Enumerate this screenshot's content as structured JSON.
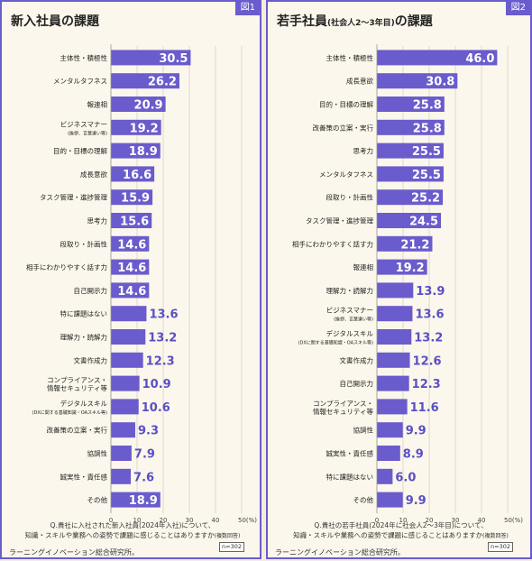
{
  "panels": [
    {
      "fig": "図1",
      "title": "新入社員の課題",
      "title_small": "",
      "title_suffix": "",
      "note_line1": "Q.貴社に入社された新入社員(2024年入社)について、",
      "note_line2": "知識・スキルや業務への姿勢で課題に感じることはありますか",
      "note_tag": "(複数回答)",
      "n_label": "n=302",
      "org": "ラーニングイノベーション総合研究所。"
    },
    {
      "fig": "図2",
      "title": "若手社員",
      "title_small": "(社会人2〜3年目)",
      "title_suffix": "の課題",
      "note_line1": "Q.貴社の若手社員(2024年に社会人2〜3年目)について、",
      "note_line2": "知識・スキルや業務への姿勢で課題に感じることはありますか",
      "note_tag": "(複数回答)",
      "n_label": "n=302",
      "org": "ラーニングイノベーション総合研究所。"
    }
  ],
  "chart_data": [
    {
      "type": "bar",
      "orientation": "horizontal",
      "title": "新入社員の課題",
      "xlim": [
        0,
        50
      ],
      "ticks": [
        "0",
        "10",
        "20",
        "30",
        "40",
        "50(%)"
      ],
      "categories": [
        {
          "label": "主体性・積極性",
          "sub": ""
        },
        {
          "label": "メンタルタフネス",
          "sub": ""
        },
        {
          "label": "報連相",
          "sub": ""
        },
        {
          "label": "ビジネスマナー",
          "sub": "(挨拶、言葉遣い等)"
        },
        {
          "label": "目的・目標の理解",
          "sub": ""
        },
        {
          "label": "成長意欲",
          "sub": ""
        },
        {
          "label": "タスク管理・進捗管理",
          "sub": ""
        },
        {
          "label": "思考力",
          "sub": ""
        },
        {
          "label": "段取り・計画性",
          "sub": ""
        },
        {
          "label": "相手にわかりやすく話す力",
          "sub": ""
        },
        {
          "label": "自己開示力",
          "sub": ""
        },
        {
          "label": "特に課題はない",
          "sub": ""
        },
        {
          "label": "理解力・読解力",
          "sub": ""
        },
        {
          "label": "文書作成力",
          "sub": ""
        },
        {
          "label": "コンプライアンス・",
          "sub": "情報セキュリティ等",
          "sub_style": "line2"
        },
        {
          "label": "デジタルスキル",
          "sub": "(DXに関する基礎知識・OAスキル等)"
        },
        {
          "label": "改善策の立案・実行",
          "sub": ""
        },
        {
          "label": "協調性",
          "sub": ""
        },
        {
          "label": "誠実性・責任感",
          "sub": ""
        },
        {
          "label": "その他",
          "sub": ""
        }
      ],
      "values": [
        30.5,
        26.2,
        20.9,
        19.2,
        18.9,
        16.6,
        15.9,
        15.6,
        14.6,
        14.6,
        14.6,
        13.6,
        13.2,
        12.3,
        10.9,
        10.6,
        9.3,
        7.9,
        7.6,
        18.9
      ],
      "label_inside": [
        true,
        true,
        true,
        true,
        true,
        true,
        true,
        true,
        true,
        true,
        true,
        false,
        false,
        false,
        false,
        false,
        false,
        false,
        false,
        true
      ]
    },
    {
      "type": "bar",
      "orientation": "horizontal",
      "title": "若手社員(社会人2〜3年目)の課題",
      "xlim": [
        0,
        50
      ],
      "ticks": [
        "0",
        "10",
        "20",
        "30",
        "40",
        "50(%)"
      ],
      "categories": [
        {
          "label": "主体性・積極性",
          "sub": ""
        },
        {
          "label": "成長意欲",
          "sub": ""
        },
        {
          "label": "目的・目標の理解",
          "sub": ""
        },
        {
          "label": "改善策の立案・実行",
          "sub": ""
        },
        {
          "label": "思考力",
          "sub": ""
        },
        {
          "label": "メンタルタフネス",
          "sub": ""
        },
        {
          "label": "段取り・計画性",
          "sub": ""
        },
        {
          "label": "タスク管理・進捗管理",
          "sub": ""
        },
        {
          "label": "相手にわかりやすく話す力",
          "sub": ""
        },
        {
          "label": "報連相",
          "sub": ""
        },
        {
          "label": "理解力・読解力",
          "sub": ""
        },
        {
          "label": "ビジネスマナー",
          "sub": "(挨拶、言葉遣い等)"
        },
        {
          "label": "デジタルスキル",
          "sub": "(DXに関する基礎知識・OAスキル等)"
        },
        {
          "label": "文書作成力",
          "sub": ""
        },
        {
          "label": "自己開示力",
          "sub": ""
        },
        {
          "label": "コンプライアンス・",
          "sub": "情報セキュリティ等",
          "sub_style": "line2"
        },
        {
          "label": "協調性",
          "sub": ""
        },
        {
          "label": "誠実性・責任感",
          "sub": ""
        },
        {
          "label": "特に課題はない",
          "sub": ""
        },
        {
          "label": "その他",
          "sub": ""
        }
      ],
      "values": [
        46.0,
        30.8,
        25.8,
        25.8,
        25.5,
        25.5,
        25.2,
        24.5,
        21.2,
        19.2,
        13.9,
        13.6,
        13.2,
        12.6,
        12.3,
        11.6,
        9.9,
        8.9,
        6.0,
        9.9
      ],
      "label_inside": [
        true,
        true,
        true,
        true,
        true,
        true,
        true,
        true,
        true,
        true,
        false,
        false,
        false,
        false,
        false,
        false,
        false,
        false,
        false,
        false
      ]
    }
  ],
  "colors": {
    "bar": "#6a5ccc",
    "label_outside": "#5a4fc4",
    "accent": "#6a5ccc"
  }
}
